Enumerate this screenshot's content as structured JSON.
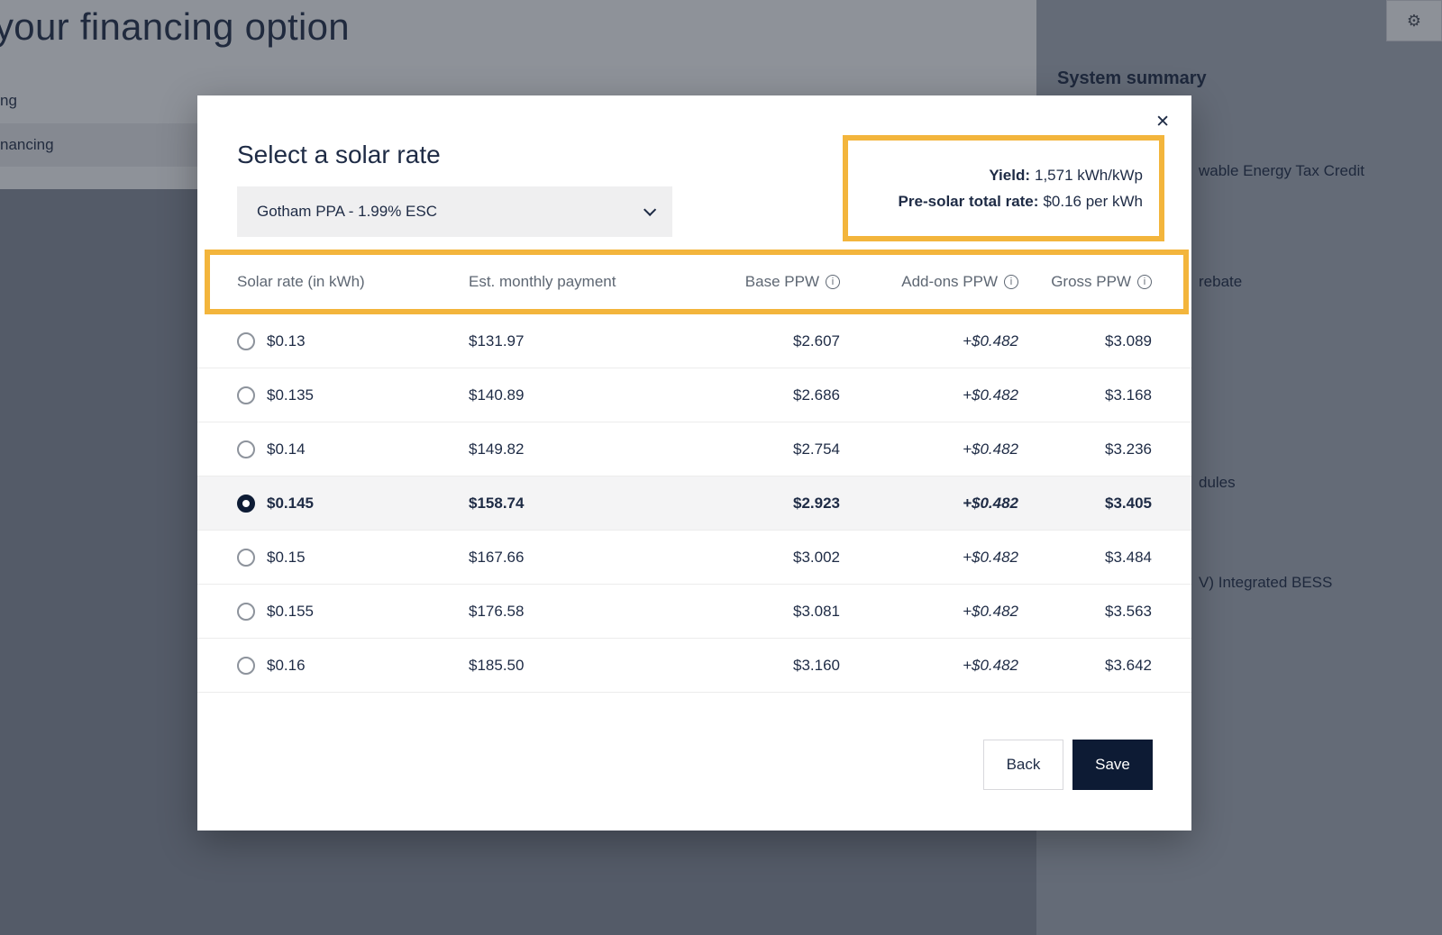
{
  "icons": {
    "close": "✕",
    "gear": "⚙",
    "info": "i"
  },
  "background": {
    "page_title": "your financing option",
    "nav_partial_top": "ng",
    "nav_partial_selected": "nancing",
    "sidebar": {
      "title": "System summary",
      "items": [
        "wable Energy Tax Credit",
        "rebate",
        "dules",
        "V) Integrated BESS"
      ]
    }
  },
  "modal": {
    "title": "Select a solar rate",
    "dropdown_value": "Gotham PPA - 1.99% ESC",
    "summary": {
      "yield_label": "Yield:",
      "yield_value": "1,571 kWh/kWp",
      "presolar_label": "Pre-solar total rate:",
      "presolar_value": "$0.16 per kWh"
    },
    "table": {
      "headers": [
        "Solar rate (in kWh)",
        "Est. monthly payment",
        "Base PPW",
        "Add-ons PPW",
        "Gross PPW"
      ],
      "rows": [
        {
          "rate": "$0.13",
          "payment": "$131.97",
          "base": "$2.607",
          "addons": "+$0.482",
          "gross": "$3.089"
        },
        {
          "rate": "$0.135",
          "payment": "$140.89",
          "base": "$2.686",
          "addons": "+$0.482",
          "gross": "$3.168"
        },
        {
          "rate": "$0.14",
          "payment": "$149.82",
          "base": "$2.754",
          "addons": "+$0.482",
          "gross": "$3.236"
        },
        {
          "rate": "$0.145",
          "payment": "$158.74",
          "base": "$2.923",
          "addons": "+$0.482",
          "gross": "$3.405"
        },
        {
          "rate": "$0.15",
          "payment": "$167.66",
          "base": "$3.002",
          "addons": "+$0.482",
          "gross": "$3.484"
        },
        {
          "rate": "$0.155",
          "payment": "$176.58",
          "base": "$3.081",
          "addons": "+$0.482",
          "gross": "$3.563"
        },
        {
          "rate": "$0.16",
          "payment": "$185.50",
          "base": "$3.160",
          "addons": "+$0.482",
          "gross": "$3.642"
        }
      ],
      "selected_rate": "$0.145"
    },
    "back_label": "Back",
    "save_label": "Save"
  },
  "colors": {
    "navy_text": "#1E2B45",
    "save_button_bg": "#0D1B34",
    "highlight_amber": "#F3B53C",
    "muted_gray": "#5E6773",
    "selected_row_bg": "#F4F4F5"
  }
}
